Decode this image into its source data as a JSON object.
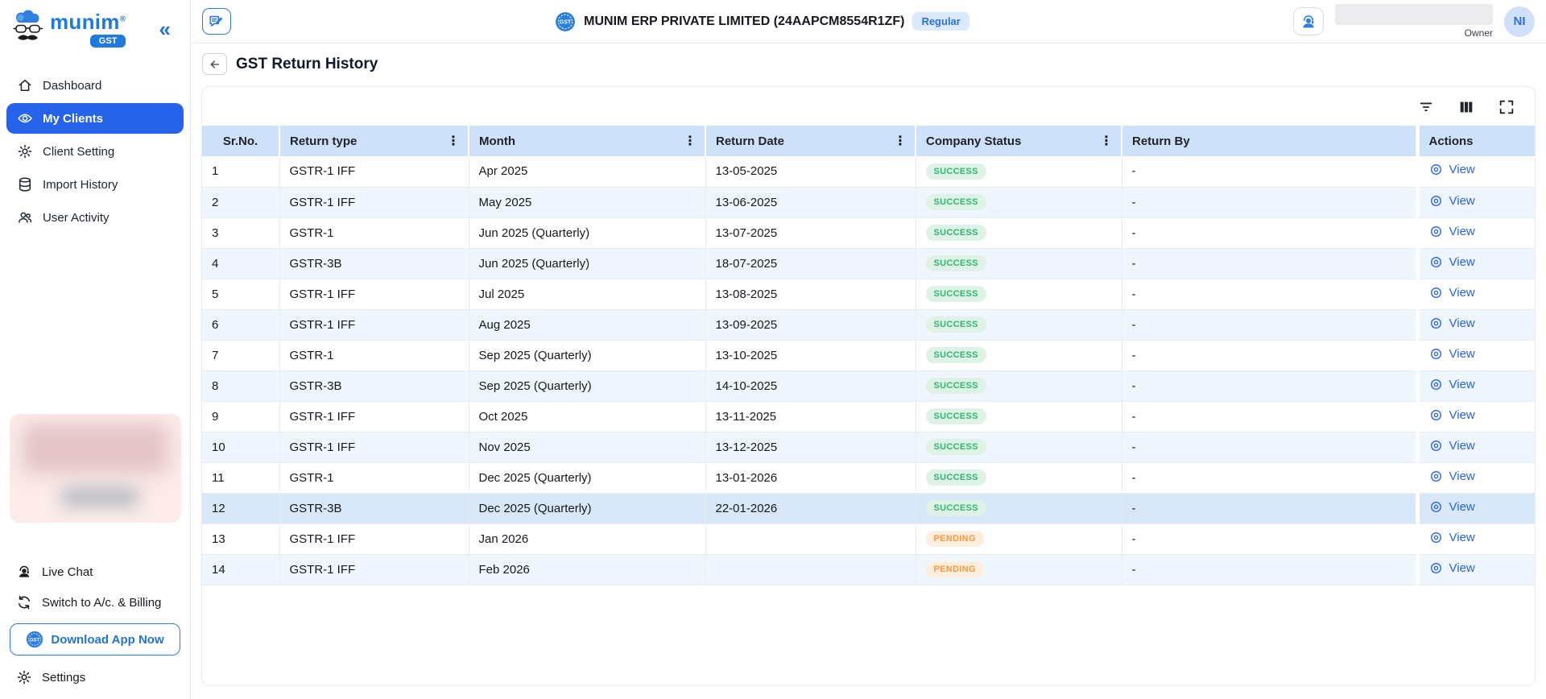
{
  "sidebar": {
    "brand": "munim",
    "brand_mark": "®",
    "brand_badge": "GST",
    "collapse_icon": "«",
    "nav": [
      {
        "label": "Dashboard",
        "icon": "home",
        "active": false
      },
      {
        "label": "My Clients",
        "icon": "eye",
        "active": true
      },
      {
        "label": "Client Setting",
        "icon": "gear",
        "active": false
      },
      {
        "label": "Import History",
        "icon": "database",
        "active": false
      },
      {
        "label": "User Activity",
        "icon": "users",
        "active": false
      }
    ],
    "bottom": [
      {
        "label": "Live Chat",
        "icon": "headset-person"
      },
      {
        "label": "Switch to A/c. & Billing",
        "icon": "switch-arrows"
      }
    ],
    "download_label": "Download App Now",
    "settings_label": "Settings"
  },
  "header": {
    "company_name": "MUNIM ERP PRIVATE LIMITED (24AAPCM8554R1ZF)",
    "plan_badge": "Regular",
    "owner_label": "Owner",
    "avatar_initials": "NI"
  },
  "page": {
    "title": "GST Return History"
  },
  "table": {
    "menu_icon": "⋮",
    "action_label": "View",
    "columns": [
      {
        "label": "Sr.No.",
        "menu": false
      },
      {
        "label": "Return type",
        "menu": true
      },
      {
        "label": "Month",
        "menu": true
      },
      {
        "label": "Return Date",
        "menu": true
      },
      {
        "label": "Company Status",
        "menu": true
      },
      {
        "label": "Return By",
        "menu": false
      },
      {
        "label": "Actions",
        "menu": false
      }
    ],
    "rows": [
      {
        "sr": "1",
        "type": "GSTR-1 IFF",
        "month": "Apr 2025",
        "date": "13-05-2025",
        "status": "SUCCESS",
        "by": "-",
        "highlighted": false
      },
      {
        "sr": "2",
        "type": "GSTR-1 IFF",
        "month": "May 2025",
        "date": "13-06-2025",
        "status": "SUCCESS",
        "by": "-",
        "highlighted": false
      },
      {
        "sr": "3",
        "type": "GSTR-1",
        "month": "Jun 2025 (Quarterly)",
        "date": "13-07-2025",
        "status": "SUCCESS",
        "by": "-",
        "highlighted": false
      },
      {
        "sr": "4",
        "type": "GSTR-3B",
        "month": "Jun 2025 (Quarterly)",
        "date": "18-07-2025",
        "status": "SUCCESS",
        "by": "-",
        "highlighted": false
      },
      {
        "sr": "5",
        "type": "GSTR-1 IFF",
        "month": "Jul 2025",
        "date": "13-08-2025",
        "status": "SUCCESS",
        "by": "-",
        "highlighted": false
      },
      {
        "sr": "6",
        "type": "GSTR-1 IFF",
        "month": "Aug 2025",
        "date": "13-09-2025",
        "status": "SUCCESS",
        "by": "-",
        "highlighted": false
      },
      {
        "sr": "7",
        "type": "GSTR-1",
        "month": "Sep 2025 (Quarterly)",
        "date": "13-10-2025",
        "status": "SUCCESS",
        "by": "-",
        "highlighted": false
      },
      {
        "sr": "8",
        "type": "GSTR-3B",
        "month": "Sep 2025 (Quarterly)",
        "date": "14-10-2025",
        "status": "SUCCESS",
        "by": "-",
        "highlighted": false
      },
      {
        "sr": "9",
        "type": "GSTR-1 IFF",
        "month": "Oct 2025",
        "date": "13-11-2025",
        "status": "SUCCESS",
        "by": "-",
        "highlighted": false
      },
      {
        "sr": "10",
        "type": "GSTR-1 IFF",
        "month": "Nov 2025",
        "date": "13-12-2025",
        "status": "SUCCESS",
        "by": "-",
        "highlighted": false
      },
      {
        "sr": "11",
        "type": "GSTR-1",
        "month": "Dec 2025 (Quarterly)",
        "date": "13-01-2026",
        "status": "SUCCESS",
        "by": "-",
        "highlighted": false
      },
      {
        "sr": "12",
        "type": "GSTR-3B",
        "month": "Dec 2025 (Quarterly)",
        "date": "22-01-2026",
        "status": "SUCCESS",
        "by": "-",
        "highlighted": true
      },
      {
        "sr": "13",
        "type": "GSTR-1 IFF",
        "month": "Jan 2026",
        "date": "",
        "status": "PENDING",
        "by": "-",
        "highlighted": false
      },
      {
        "sr": "14",
        "type": "GSTR-1 IFF",
        "month": "Feb 2026",
        "date": "",
        "status": "PENDING",
        "by": "-",
        "highlighted": false
      }
    ]
  },
  "colors": {
    "accent": "#2563eb",
    "brand_blue": "#2079dd",
    "table_header_bg": "#cde1f8",
    "row_alt_bg": "#f0f6fd",
    "row_highlight_bg": "#d8e8f8",
    "success_text": "#2eb872",
    "success_bg": "#def2e6",
    "pending_text": "#f89a3e",
    "pending_bg": "#fdeede"
  }
}
